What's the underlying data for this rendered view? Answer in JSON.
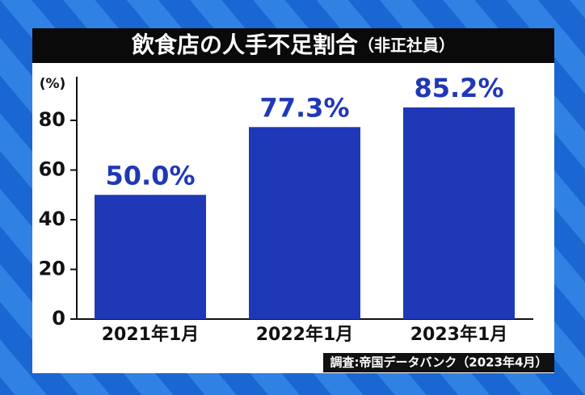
{
  "chart_data": {
    "type": "bar",
    "title": "飲食店の人手不足割合",
    "subtitle": "（非正社員）",
    "y_label": "(%)",
    "categories": [
      "2021年1月",
      "2022年1月",
      "2023年1月"
    ],
    "values": [
      50.0,
      77.3,
      85.2
    ],
    "value_labels": [
      "50.0%",
      "77.3%",
      "85.2%"
    ],
    "color": "#1f38b8",
    "ylim": [
      0,
      100
    ],
    "yticks": [
      0,
      20,
      40,
      60,
      80
    ],
    "source": "調査:帝国データバンク（2023年4月）"
  }
}
